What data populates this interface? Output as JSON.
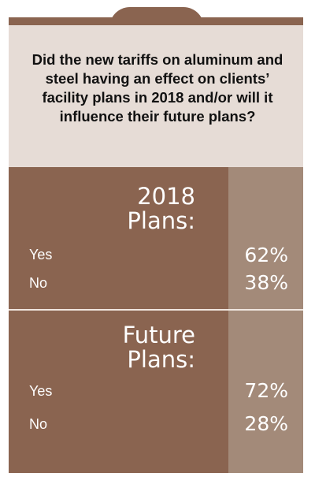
{
  "question": "Did the new tariffs on aluminum and steel having an effect on clients’ facility plans in 2018 and/or will it influence their future plans?",
  "sections": [
    {
      "title_line1": "2018",
      "title_line2": "Plans:",
      "rows": [
        {
          "label": "Yes",
          "value": "62%"
        },
        {
          "label": "No",
          "value": "38%"
        }
      ]
    },
    {
      "title_line1": "Future",
      "title_line2": "Plans:",
      "rows": [
        {
          "label": "Yes",
          "value": "72%"
        },
        {
          "label": "No",
          "value": "28%"
        }
      ]
    }
  ],
  "chart_data": {
    "type": "table",
    "title": "Did the new tariffs on aluminum and steel having an effect on clients’ facility plans in 2018 and/or will it influence their future plans?",
    "columns": [
      "",
      "2018 Plans:",
      "Future Plans:"
    ],
    "rows": [
      {
        "label": "Yes",
        "values": [
          62,
          72
        ]
      },
      {
        "label": "No",
        "values": [
          38,
          28
        ]
      }
    ],
    "unit": "%",
    "colors": {
      "primary": "#8a6450",
      "secondary": "#a38a79",
      "header_bg": "#e6dcd6"
    }
  }
}
